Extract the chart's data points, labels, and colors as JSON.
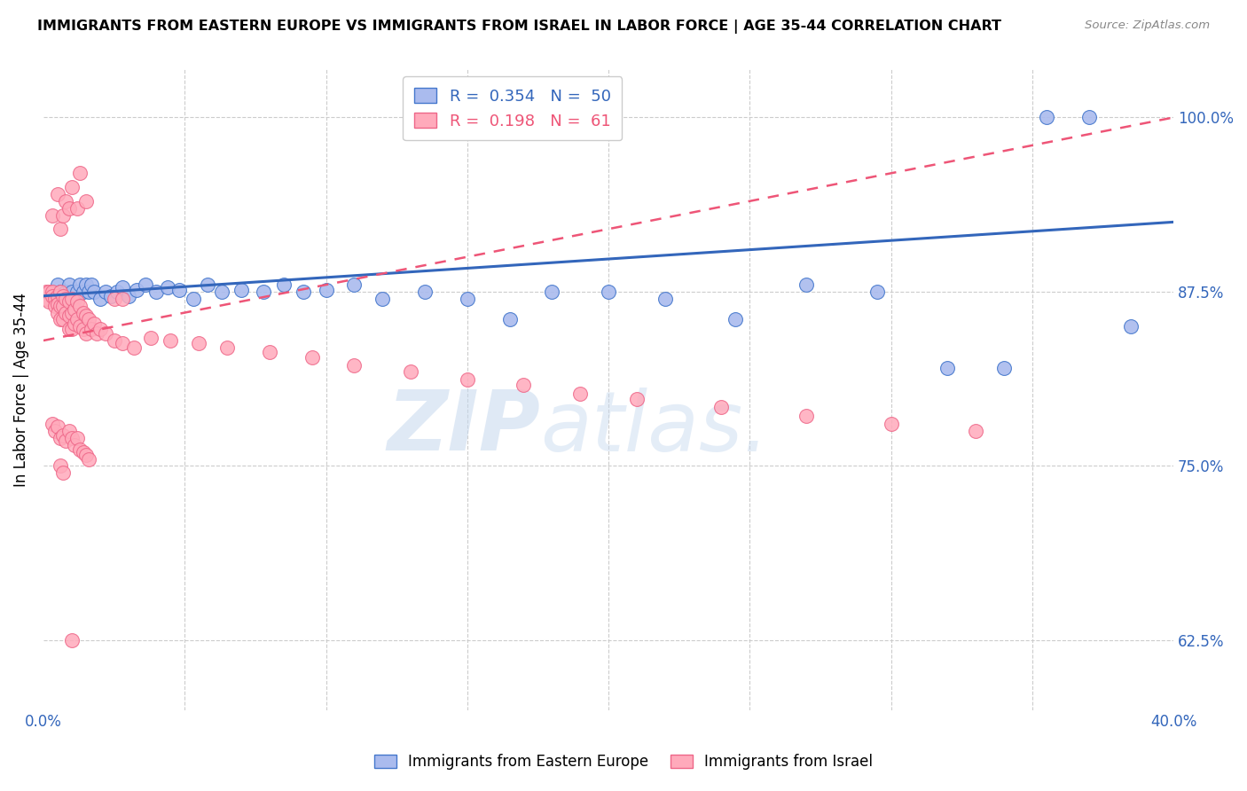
{
  "title": "IMMIGRANTS FROM EASTERN EUROPE VS IMMIGRANTS FROM ISRAEL IN LABOR FORCE | AGE 35-44 CORRELATION CHART",
  "source": "Source: ZipAtlas.com",
  "ylabel_label": "In Labor Force | Age 35-44",
  "yticks": [
    "62.5%",
    "75.0%",
    "87.5%",
    "100.0%"
  ],
  "ytick_vals": [
    0.625,
    0.75,
    0.875,
    1.0
  ],
  "xmin": 0.0,
  "xmax": 0.4,
  "ymin": 0.575,
  "ymax": 1.035,
  "R_blue": 0.354,
  "N_blue": 50,
  "R_pink": 0.198,
  "N_pink": 61,
  "color_blue": "#AABBEE",
  "color_pink": "#FFAABB",
  "edge_blue": "#4477CC",
  "edge_pink": "#EE6688",
  "trendline_blue": "#3366BB",
  "trendline_pink": "#EE5577",
  "watermark_zip": "ZIP",
  "watermark_atlas": "atlas.",
  "legend_label_blue": "Immigrants from Eastern Europe",
  "legend_label_pink": "Immigrants from Israel",
  "blue_x": [
    0.003,
    0.005,
    0.006,
    0.007,
    0.008,
    0.009,
    0.01,
    0.011,
    0.012,
    0.013,
    0.014,
    0.015,
    0.016,
    0.017,
    0.018,
    0.02,
    0.022,
    0.024,
    0.026,
    0.028,
    0.03,
    0.033,
    0.036,
    0.04,
    0.044,
    0.048,
    0.053,
    0.058,
    0.063,
    0.07,
    0.078,
    0.085,
    0.092,
    0.1,
    0.11,
    0.12,
    0.135,
    0.15,
    0.165,
    0.18,
    0.2,
    0.22,
    0.245,
    0.27,
    0.295,
    0.32,
    0.34,
    0.355,
    0.37,
    0.385
  ],
  "blue_y": [
    0.875,
    0.88,
    0.875,
    0.87,
    0.875,
    0.88,
    0.875,
    0.87,
    0.875,
    0.88,
    0.875,
    0.88,
    0.875,
    0.88,
    0.875,
    0.87,
    0.875,
    0.872,
    0.875,
    0.878,
    0.872,
    0.876,
    0.88,
    0.875,
    0.878,
    0.876,
    0.87,
    0.88,
    0.875,
    0.876,
    0.875,
    0.88,
    0.875,
    0.876,
    0.88,
    0.87,
    0.875,
    0.87,
    0.855,
    0.875,
    0.875,
    0.87,
    0.855,
    0.88,
    0.875,
    0.82,
    0.82,
    1.0,
    1.0,
    0.85
  ],
  "pink_x": [
    0.001,
    0.001,
    0.002,
    0.002,
    0.003,
    0.003,
    0.004,
    0.004,
    0.005,
    0.005,
    0.005,
    0.006,
    0.006,
    0.006,
    0.007,
    0.007,
    0.007,
    0.008,
    0.008,
    0.009,
    0.009,
    0.009,
    0.01,
    0.01,
    0.01,
    0.011,
    0.011,
    0.012,
    0.012,
    0.013,
    0.013,
    0.014,
    0.014,
    0.015,
    0.015,
    0.016,
    0.017,
    0.018,
    0.019,
    0.02,
    0.022,
    0.025,
    0.028,
    0.032,
    0.038,
    0.045,
    0.055,
    0.065,
    0.08,
    0.095,
    0.11,
    0.13,
    0.15,
    0.17,
    0.19,
    0.21,
    0.24,
    0.27,
    0.3,
    0.33,
    0.01
  ],
  "pink_y": [
    0.875,
    0.87,
    0.875,
    0.868,
    0.875,
    0.872,
    0.87,
    0.865,
    0.872,
    0.866,
    0.86,
    0.875,
    0.865,
    0.855,
    0.872,
    0.865,
    0.855,
    0.87,
    0.86,
    0.868,
    0.858,
    0.848,
    0.87,
    0.86,
    0.848,
    0.862,
    0.852,
    0.868,
    0.855,
    0.865,
    0.85,
    0.86,
    0.848,
    0.858,
    0.845,
    0.855,
    0.848,
    0.852,
    0.845,
    0.848,
    0.845,
    0.84,
    0.838,
    0.835,
    0.842,
    0.84,
    0.838,
    0.835,
    0.832,
    0.828,
    0.822,
    0.818,
    0.812,
    0.808,
    0.802,
    0.798,
    0.792,
    0.786,
    0.78,
    0.775,
    0.625
  ],
  "pink_high_x": [
    0.003,
    0.005,
    0.006,
    0.007,
    0.008,
    0.009,
    0.01,
    0.012,
    0.013,
    0.015,
    0.025,
    0.028
  ],
  "pink_high_y": [
    0.93,
    0.945,
    0.92,
    0.93,
    0.94,
    0.935,
    0.95,
    0.935,
    0.96,
    0.94,
    0.87,
    0.87
  ],
  "pink_low_x": [
    0.003,
    0.004,
    0.005,
    0.006,
    0.007,
    0.008,
    0.009,
    0.01,
    0.011,
    0.012,
    0.013,
    0.014,
    0.015,
    0.016,
    0.006,
    0.007
  ],
  "pink_low_y": [
    0.78,
    0.775,
    0.778,
    0.77,
    0.772,
    0.768,
    0.775,
    0.77,
    0.765,
    0.77,
    0.762,
    0.76,
    0.758,
    0.755,
    0.75,
    0.745
  ]
}
